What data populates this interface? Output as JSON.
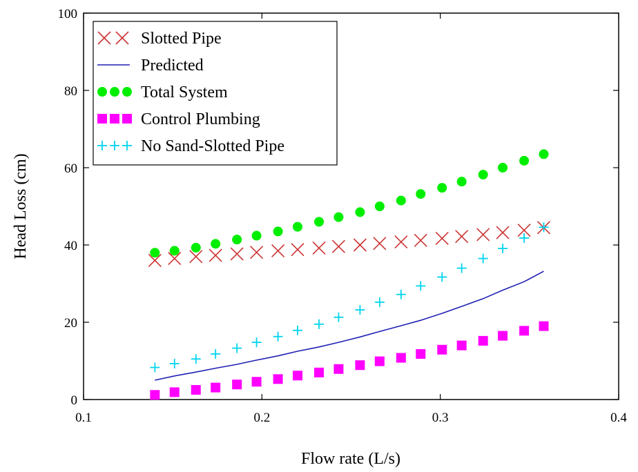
{
  "chart_data": {
    "type": "scatter",
    "xlabel": "Flow rate (L/s)",
    "ylabel": "Head Loss (cm)",
    "xlim": [
      0.1,
      0.4
    ],
    "ylim": [
      0,
      100
    ],
    "x_ticks": [
      "0.1",
      "0.2",
      "0.3",
      "0.4"
    ],
    "y_ticks": [
      "0",
      "20",
      "40",
      "60",
      "80",
      "100"
    ],
    "grid": false,
    "legend_position": "top-left",
    "x": [
      0.14,
      0.151,
      0.163,
      0.174,
      0.186,
      0.197,
      0.209,
      0.22,
      0.232,
      0.243,
      0.255,
      0.266,
      0.278,
      0.289,
      0.301,
      0.312,
      0.324,
      0.335,
      0.347,
      0.358
    ],
    "series": [
      {
        "name": "Slotted Pipe",
        "marker": "x",
        "color": "#cc3333",
        "values": [
          36,
          36.5,
          37,
          37.3,
          37.7,
          38.1,
          38.5,
          38.8,
          39.2,
          39.6,
          40,
          40.4,
          40.8,
          41.2,
          41.7,
          42.2,
          42.7,
          43.2,
          43.8,
          44.5
        ]
      },
      {
        "name": "Predicted",
        "marker": "line",
        "color": "#1f1fb4",
        "values": [
          5,
          6.1,
          7.1,
          8.1,
          9.1,
          10.2,
          11.3,
          12.5,
          13.6,
          14.8,
          16.2,
          17.6,
          19.1,
          20.5,
          22.3,
          24.1,
          26.1,
          28.3,
          30.5,
          33.2
        ]
      },
      {
        "name": "Total System",
        "marker": "circle",
        "color": "#00ee00",
        "values": [
          38,
          38.5,
          39.3,
          40.3,
          41.4,
          42.4,
          43.5,
          44.7,
          46,
          47.2,
          48.5,
          50,
          51.5,
          53.2,
          54.8,
          56.4,
          58.2,
          60,
          61.8,
          63.5
        ]
      },
      {
        "name": "Control Plumbing",
        "marker": "square",
        "color": "#ff00ff",
        "values": [
          1.2,
          1.9,
          2.5,
          3.1,
          3.9,
          4.6,
          5.3,
          6.2,
          7,
          7.9,
          8.9,
          9.9,
          10.8,
          11.8,
          12.9,
          14,
          15.2,
          16.5,
          17.8,
          19
        ]
      },
      {
        "name": "No Sand-Slotted Pipe",
        "marker": "plus",
        "color": "#00d4ee",
        "values": [
          8.3,
          9.3,
          10.5,
          11.8,
          13.3,
          14.8,
          16.3,
          17.9,
          19.5,
          21.3,
          23.2,
          25.2,
          27.2,
          29.4,
          31.7,
          34,
          36.5,
          39.1,
          41.8,
          44.6
        ]
      }
    ]
  }
}
